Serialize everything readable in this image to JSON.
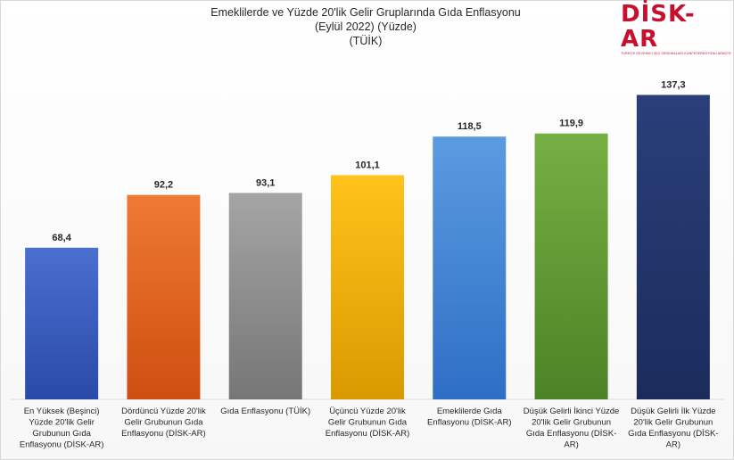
{
  "header": {
    "title_line1": "Emeklilerde ve Yüzde 20'lik Gelir Gruplarında Gıda Enflasyonu",
    "title_line2": "(Eylül 2022) (Yüzde)",
    "title_line3": "(TÜİK)"
  },
  "logo": {
    "word": "DİSK-AR",
    "subtitle": "TÜRKİYE DEVRİMCİ İŞÇİ SENDİKALARI KONFEDERASYONU ARAŞTIRMA MERKEZİ"
  },
  "chart_data": {
    "type": "bar",
    "title": "Emeklilerde ve Yüzde 20'lik Gelir Gruplarında Gıda Enflasyonu (Eylül 2022) (Yüzde) (TÜİK)",
    "categories": [
      "En Yüksek (Beşinci) Yüzde 20'lik Gelir Grubunun Gıda Enflasyonu (DİSK-AR)",
      "Dördüncü Yüzde 20'lik Gelir Grubunun Gıda Enflasyonu (DİSK-AR)",
      "Gıda Enflasyonu (TÜİK)",
      "Üçüncü Yüzde 20'lik Gelir Grubunun Gıda Enflasyonu (DİSK-AR)",
      "Emeklilerde Gıda Enflasyonu (DİSK-AR)",
      "Düşük Gelirli İkinci Yüzde 20'lik Gelir Grubunun Gıda Enflasyonu (DİSK-AR)",
      "Düşük Gelirli İlk Yüzde 20'lik Gelir Grubunun Gıda Enflasyonu (DİSK-AR)"
    ],
    "category_lines": [
      [
        "En Yüksek (Beşinci)",
        "Yüzde 20'lik Gelir",
        "Grubunun Gıda",
        "Enflasyonu (DİSK-AR)"
      ],
      [
        "Dördüncü Yüzde 20'lik",
        "Gelir Grubunun Gıda",
        "Enflasyonu (DİSK-AR)"
      ],
      [
        "Gıda Enflasyonu (TÜİK)"
      ],
      [
        "Üçüncü Yüzde 20'lik",
        "Gelir Grubunun Gıda",
        "Enflasyonu (DİSK-AR)"
      ],
      [
        "Emeklilerde Gıda",
        "Enflasyonu (DİSK-AR)"
      ],
      [
        "Düşük Gelirli İkinci Yüzde",
        "20'lik Gelir Grubunun",
        "Gıda Enflasyonu (DİSK-",
        "AR)"
      ],
      [
        "Düşük Gelirli İlk Yüzde",
        "20'lik Gelir Grubunun",
        "Gıda Enflasyonu (DİSK-",
        "AR)"
      ]
    ],
    "values": [
      68.4,
      92.2,
      93.1,
      101.1,
      118.5,
      119.9,
      137.3
    ],
    "value_labels": [
      "68,4",
      "92,2",
      "93,1",
      "101,1",
      "118,5",
      "119,9",
      "137,3"
    ],
    "colors": [
      [
        "#4a6fd0",
        "#2a4aa8"
      ],
      [
        "#ee7a35",
        "#cf4e0f"
      ],
      [
        "#a5a5a5",
        "#767676"
      ],
      [
        "#ffc21a",
        "#d99a00"
      ],
      [
        "#5b9be0",
        "#2e6fc6"
      ],
      [
        "#76b043",
        "#4c8325"
      ],
      [
        "#2a3f7a",
        "#1b2c5c"
      ]
    ],
    "ylim": [
      0,
      160
    ],
    "grid": false,
    "legend": "none"
  }
}
